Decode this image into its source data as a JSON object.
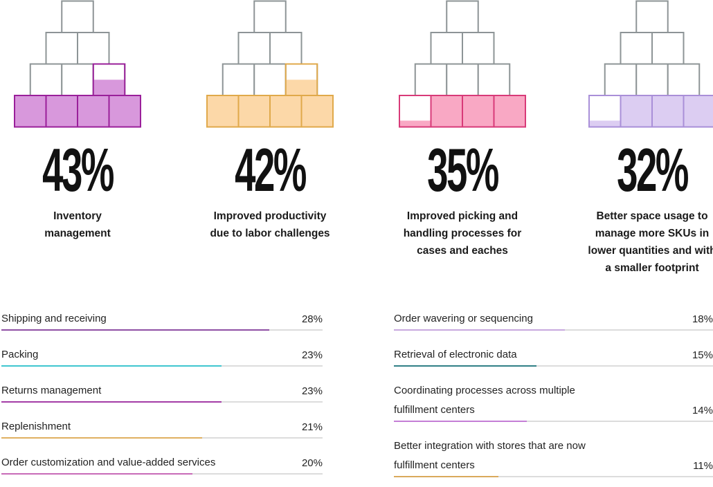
{
  "stats": [
    {
      "value_label": "43%",
      "value": 43,
      "description": [
        "Inventory",
        "management"
      ],
      "fill_color": "#d898dc",
      "stroke_color": "#9a1f9a",
      "partial_fill": 0.5,
      "partial_position": "row2"
    },
    {
      "value_label": "42%",
      "value": 42,
      "description": [
        "Improved productivity",
        "due to labor challenges"
      ],
      "fill_color": "#fcd8a8",
      "stroke_color": "#e0a94a",
      "partial_fill": 0.5,
      "partial_position": "row2"
    },
    {
      "value_label": "35%",
      "value": 35,
      "description": [
        "Improved picking and",
        "handling processes for",
        "cases and eaches"
      ],
      "fill_color": "#f9a8c4",
      "stroke_color": "#d83a78",
      "partial_fill": 0.2,
      "partial_position": "row1"
    },
    {
      "value_label": "32%",
      "value": 32,
      "description": [
        "Better space usage to",
        "manage more SKUs in",
        "lower quantities and with",
        "a smaller footprint"
      ],
      "fill_color": "#dccdf2",
      "stroke_color": "#a98fd8",
      "partial_fill": 0.2,
      "partial_position": "row1"
    }
  ],
  "chart_data": {
    "type": "bar",
    "series": [
      {
        "rows": [
          {
            "label": [
              "Shipping and receiving"
            ],
            "value": 28,
            "value_label": "28%",
            "color": "#8e4fa4"
          },
          {
            "label": [
              "Packing"
            ],
            "value": 23,
            "value_label": "23%",
            "color": "#3ec6cf"
          },
          {
            "label": [
              "Returns management"
            ],
            "value": 23,
            "value_label": "23%",
            "color": "#a33ba6"
          },
          {
            "label": [
              "Replenishment"
            ],
            "value": 21,
            "value_label": "21%",
            "color": "#e0b060"
          },
          {
            "label": [
              "Order customization and value-added services"
            ],
            "value": 20,
            "value_label": "20%",
            "color": "#c86ab8"
          }
        ]
      },
      {
        "rows": [
          {
            "label": [
              "Order wavering or sequencing"
            ],
            "value": 18,
            "value_label": "18%",
            "color": "#c7a8de"
          },
          {
            "label": [
              "Retrieval of electronic data"
            ],
            "value": 15,
            "value_label": "15%",
            "color": "#2f7f86"
          },
          {
            "label": [
              "Coordinating processes across multiple",
              "fulfillment centers"
            ],
            "value": 14,
            "value_label": "14%",
            "color": "#c47ed6"
          },
          {
            "label": [
              "Better integration with stores that are now",
              "fulfillment centers"
            ],
            "value": 11,
            "value_label": "11%",
            "color": "#d9a95b"
          }
        ]
      }
    ]
  }
}
